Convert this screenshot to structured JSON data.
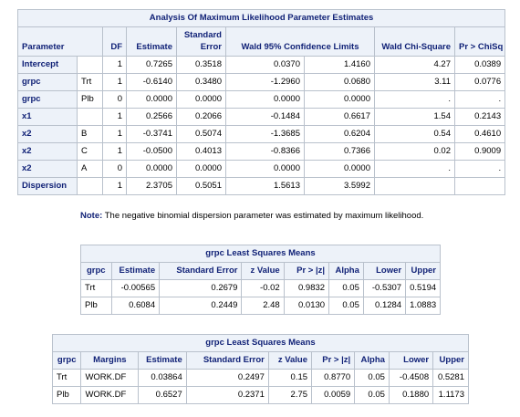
{
  "mle": {
    "title": "Analysis Of Maximum Likelihood Parameter Estimates",
    "headers": {
      "parameter": "Parameter",
      "df": "DF",
      "estimate": "Estimate",
      "stderr_line1": "Standard",
      "stderr_line2": "Error",
      "ci": "Wald 95% Confidence Limits",
      "chisq": "Wald Chi-Square",
      "p": "Pr > ChiSq"
    },
    "rows": [
      {
        "param": "Intercept",
        "level": "",
        "df": "1",
        "est": "0.7265",
        "se": "0.3518",
        "lo": "0.0370",
        "hi": "1.4160",
        "chisq": "4.27",
        "p": "0.0389"
      },
      {
        "param": "grpc",
        "level": "Trt",
        "df": "1",
        "est": "-0.6140",
        "se": "0.3480",
        "lo": "-1.2960",
        "hi": "0.0680",
        "chisq": "3.11",
        "p": "0.0776"
      },
      {
        "param": "grpc",
        "level": "Plb",
        "df": "0",
        "est": "0.0000",
        "se": "0.0000",
        "lo": "0.0000",
        "hi": "0.0000",
        "chisq": ".",
        "p": "."
      },
      {
        "param": "x1",
        "level": "",
        "df": "1",
        "est": "0.2566",
        "se": "0.2066",
        "lo": "-0.1484",
        "hi": "0.6617",
        "chisq": "1.54",
        "p": "0.2143"
      },
      {
        "param": "x2",
        "level": "B",
        "df": "1",
        "est": "-0.3741",
        "se": "0.5074",
        "lo": "-1.3685",
        "hi": "0.6204",
        "chisq": "0.54",
        "p": "0.4610"
      },
      {
        "param": "x2",
        "level": "C",
        "df": "1",
        "est": "-0.0500",
        "se": "0.4013",
        "lo": "-0.8366",
        "hi": "0.7366",
        "chisq": "0.02",
        "p": "0.9009"
      },
      {
        "param": "x2",
        "level": "A",
        "df": "0",
        "est": "0.0000",
        "se": "0.0000",
        "lo": "0.0000",
        "hi": "0.0000",
        "chisq": ".",
        "p": "."
      },
      {
        "param": "Dispersion",
        "level": "",
        "df": "1",
        "est": "2.3705",
        "se": "0.5051",
        "lo": "1.5613",
        "hi": "3.5992",
        "chisq": "",
        "p": ""
      }
    ]
  },
  "note": {
    "label": "Note:",
    "text": "The negative binomial dispersion parameter was estimated by maximum likelihood."
  },
  "lsm1": {
    "title": "grpc Least Squares Means",
    "headers": [
      "grpc",
      "Estimate",
      "Standard Error",
      "z Value",
      "Pr > |z|",
      "Alpha",
      "Lower",
      "Upper"
    ],
    "rows": [
      [
        "Trt",
        "-0.00565",
        "0.2679",
        "-0.02",
        "0.9832",
        "0.05",
        "-0.5307",
        "0.5194"
      ],
      [
        "Plb",
        "0.6084",
        "0.2449",
        "2.48",
        "0.0130",
        "0.05",
        "0.1284",
        "1.0883"
      ]
    ]
  },
  "lsm2": {
    "title": "grpc Least Squares Means",
    "headers": [
      "grpc",
      "Margins",
      "Estimate",
      "Standard Error",
      "z Value",
      "Pr > |z|",
      "Alpha",
      "Lower",
      "Upper"
    ],
    "rows": [
      [
        "Trt",
        "WORK.DF",
        "0.03864",
        "0.2497",
        "0.15",
        "0.8770",
        "0.05",
        "-0.4508",
        "0.5281"
      ],
      [
        "Plb",
        "WORK.DF",
        "0.6527",
        "0.2371",
        "2.75",
        "0.0059",
        "0.05",
        "0.1880",
        "1.1173"
      ]
    ]
  }
}
